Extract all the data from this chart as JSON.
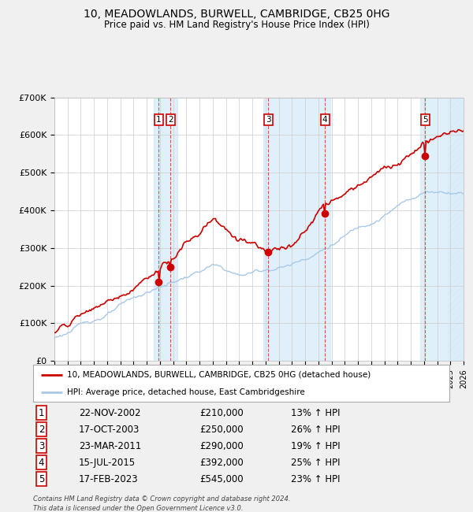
{
  "title": "10, MEADOWLANDS, BURWELL, CAMBRIDGE, CB25 0HG",
  "subtitle": "Price paid vs. HM Land Registry's House Price Index (HPI)",
  "legend_line1": "10, MEADOWLANDS, BURWELL, CAMBRIDGE, CB25 0HG (detached house)",
  "legend_line2": "HPI: Average price, detached house, East Cambridgeshire",
  "footer1": "Contains HM Land Registry data © Crown copyright and database right 2024.",
  "footer2": "This data is licensed under the Open Government Licence v3.0.",
  "hpi_color": "#a8c8e8",
  "price_color": "#cc0000",
  "bg_color": "#f0f0f0",
  "plot_bg": "#ffffff",
  "grid_color": "#cccccc",
  "shade_color": "#d0e8f8",
  "purchases": [
    {
      "label": "1",
      "date_x": 2002.9,
      "price": 210000,
      "date_str": "22-NOV-2002",
      "pct": "13%"
    },
    {
      "label": "2",
      "date_x": 2003.8,
      "price": 250000,
      "date_str": "17-OCT-2003",
      "pct": "26%"
    },
    {
      "label": "3",
      "date_x": 2011.2,
      "price": 290000,
      "date_str": "23-MAR-2011",
      "pct": "19%"
    },
    {
      "label": "4",
      "date_x": 2015.5,
      "price": 392000,
      "date_str": "15-JUL-2015",
      "pct": "25%"
    },
    {
      "label": "5",
      "date_x": 2023.1,
      "price": 545000,
      "date_str": "17-FEB-2023",
      "pct": "23%"
    }
  ],
  "xmin": 1995,
  "xmax": 2026,
  "ymin": 0,
  "ymax": 700000,
  "yticks": [
    0,
    100000,
    200000,
    300000,
    400000,
    500000,
    600000,
    700000
  ],
  "ytick_labels": [
    "£0",
    "£100K",
    "£200K",
    "£300K",
    "£400K",
    "£500K",
    "£600K",
    "£700K"
  ],
  "table_data": [
    [
      "1",
      "22-NOV-2002",
      "£210,000",
      "13% ↑ HPI"
    ],
    [
      "2",
      "17-OCT-2003",
      "£250,000",
      "26% ↑ HPI"
    ],
    [
      "3",
      "23-MAR-2011",
      "£290,000",
      "19% ↑ HPI"
    ],
    [
      "4",
      "15-JUL-2015",
      "£392,000",
      "25% ↑ HPI"
    ],
    [
      "5",
      "17-FEB-2023",
      "£545,000",
      "23% ↑ HPI"
    ]
  ]
}
